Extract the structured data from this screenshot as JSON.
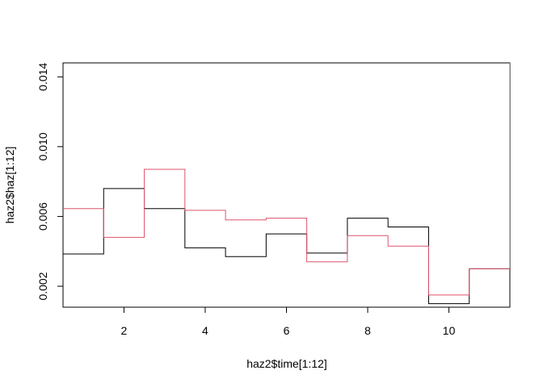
{
  "chart_data": {
    "type": "line",
    "step": true,
    "title": "",
    "xlabel": "haz2$time[1:12]",
    "ylabel": "haz2$haz[1:12]",
    "xlim": [
      0.5,
      11.5
    ],
    "ylim": [
      0.0008,
      0.0148
    ],
    "xticks": [
      2,
      4,
      6,
      8,
      10
    ],
    "yticks": [
      0.002,
      0.006,
      0.01,
      0.014
    ],
    "ytick_labels": [
      "0.002",
      "0.006",
      "0.010",
      "0.014"
    ],
    "grid": false,
    "legend": "none",
    "x": [
      1,
      2,
      3,
      4,
      5,
      6,
      7,
      8,
      9,
      10,
      11,
      12
    ],
    "series": [
      {
        "color": "#000000",
        "values": [
          0.00385,
          0.0076,
          0.00645,
          0.0042,
          0.0037,
          0.005,
          0.0039,
          0.0059,
          0.0054,
          0.001,
          0.003,
          0.003
        ]
      },
      {
        "color": "#DF536B",
        "values": [
          0.00645,
          0.0048,
          0.0087,
          0.00635,
          0.0058,
          0.0059,
          0.0034,
          0.0049,
          0.0043,
          0.0015,
          0.003,
          0.0148
        ]
      }
    ]
  }
}
